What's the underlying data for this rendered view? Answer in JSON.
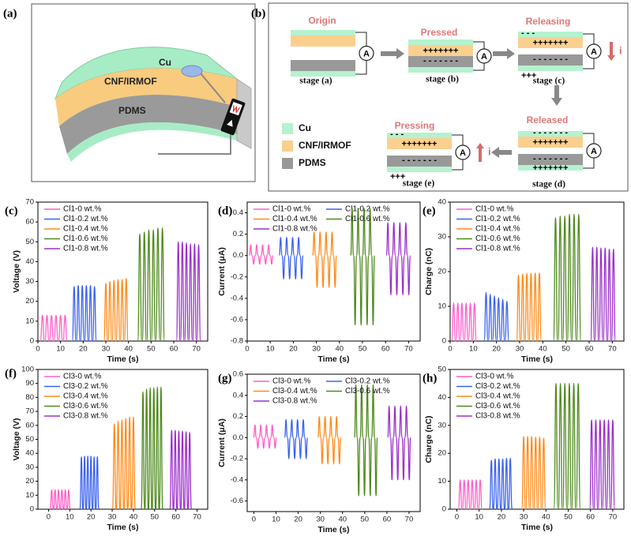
{
  "diagram_a": {
    "label": "(a)",
    "layers": [
      "Cu",
      "CNF/IRMOF",
      "PDMS"
    ]
  },
  "diagram_b": {
    "label": "(b)",
    "stages": [
      {
        "title": "Origin",
        "caption": "stage (a)"
      },
      {
        "title": "Pressed",
        "caption": "stage (b)"
      },
      {
        "title": "Releasing",
        "caption": "stage (c)"
      },
      {
        "title": "Released",
        "caption": "stage (d)"
      },
      {
        "title": "Pressing",
        "caption": "stage (e)"
      }
    ],
    "meter": "A",
    "current": "i",
    "legend": [
      "Cu",
      "CNF/IRMOF",
      "PDMS"
    ],
    "positive": "+++++++",
    "negative": "- - - - - - -",
    "positive_few": "+++",
    "negative_few": "- - -"
  },
  "chart_data": [
    {
      "type": "line",
      "label": "(c)",
      "xlabel": "Time (s)",
      "ylabel": "Voltage (V)",
      "legend": "upper left",
      "xlim": [
        0,
        75
      ],
      "xticks": [
        0,
        10,
        20,
        30,
        40,
        50,
        60,
        70
      ],
      "ylim": [
        0,
        70
      ],
      "yticks": [
        0,
        10,
        20,
        30,
        40,
        50,
        60,
        70
      ],
      "series": [
        {
          "name": "Cl1-0 wt.%",
          "color": "#ff5fc8",
          "x": [
            2,
            4,
            6,
            8,
            10,
            12
          ],
          "values": [
            13,
            13,
            13,
            13,
            13,
            13
          ]
        },
        {
          "name": "Cl1-0.2 wt.%",
          "color": "#3a62f0",
          "x": [
            16,
            17.8,
            19.6,
            21.4,
            23.2,
            25
          ],
          "values": [
            27.5,
            28,
            28,
            28,
            28,
            27.5
          ]
        },
        {
          "name": "Cl1-0.4 wt.%",
          "color": "#ff8a1a",
          "x": [
            30,
            31.8,
            33.6,
            35.4,
            37.2,
            39
          ],
          "values": [
            29,
            30,
            30.5,
            31,
            31,
            31.5
          ]
        },
        {
          "name": "Cl1-0.6 wt.%",
          "color": "#4f8a1e",
          "x": [
            45,
            47,
            49,
            51,
            53,
            55
          ],
          "values": [
            54,
            55,
            56,
            56,
            57,
            57
          ]
        },
        {
          "name": "Cl1-0.8 wt.%",
          "color": "#9b30c8",
          "x": [
            62,
            63.8,
            65.6,
            67.4,
            69.2,
            71
          ],
          "values": [
            50,
            50,
            49.5,
            49,
            49,
            48.5
          ]
        }
      ]
    },
    {
      "type": "line",
      "label": "(d)",
      "xlabel": "Time (s)",
      "ylabel": "Current (μA)",
      "legend": "upper left",
      "xlim": [
        0,
        75
      ],
      "xticks": [
        0,
        10,
        20,
        30,
        40,
        50,
        60,
        70
      ],
      "ylim": [
        -0.8,
        0.5
      ],
      "yticks": [
        -0.8,
        -0.6,
        -0.4,
        -0.2,
        {
          "value": 0,
          "label": "0.0"
        },
        0.2,
        0.4
      ],
      "series": [
        {
          "name": "Cl1-0 wt.%",
          "color": "#ff5fc8",
          "x": [
            1.5,
            2.8,
            4.1,
            5.4,
            6.7,
            8,
            9.3,
            10.6
          ],
          "values": [
            0.1,
            -0.08,
            0.1,
            -0.08,
            0.1,
            -0.08,
            0.1,
            -0.08
          ]
        },
        {
          "name": "Cl1-0.2 wt.%",
          "color": "#3a62f0",
          "x": [
            14.5,
            15.8,
            17.1,
            18.4,
            19.7,
            21,
            22.3,
            23.6
          ],
          "values": [
            0.17,
            -0.22,
            0.17,
            -0.22,
            0.17,
            -0.22,
            0.17,
            -0.22
          ]
        },
        {
          "name": "Cl1-0.4 wt.%",
          "color": "#ff8a1a",
          "x": [
            29,
            30.3,
            31.6,
            32.9,
            34.2,
            35.5,
            36.8,
            38.1
          ],
          "values": [
            0.22,
            -0.3,
            0.22,
            -0.3,
            0.22,
            -0.3,
            0.22,
            -0.3
          ]
        },
        {
          "name": "Cl1-0.6 wt.%",
          "color": "#4f8a1e",
          "x": [
            45.5,
            46.8,
            48.1,
            49.4,
            50.7,
            52,
            53.3,
            54.6
          ],
          "values": [
            0.44,
            -0.65,
            0.44,
            -0.65,
            0.44,
            -0.65,
            0.44,
            -0.65
          ]
        },
        {
          "name": "Cl1-0.8 wt.%",
          "color": "#9b30c8",
          "x": [
            61,
            62.3,
            63.6,
            64.9,
            66.2,
            67.5,
            68.8,
            70.1
          ],
          "values": [
            0.31,
            -0.37,
            0.31,
            -0.37,
            0.31,
            -0.37,
            0.31,
            -0.37
          ]
        }
      ]
    },
    {
      "type": "line",
      "label": "(e)",
      "xlabel": "Time (s)",
      "ylabel": "Charge (nC)",
      "legend": "upper left",
      "xlim": [
        0,
        75
      ],
      "xticks": [
        0,
        10,
        20,
        30,
        40,
        50,
        60,
        70
      ],
      "ylim": [
        0,
        40
      ],
      "yticks": [
        0,
        10,
        20,
        30,
        40
      ],
      "series": [
        {
          "name": "Cl1-0 wt.%",
          "color": "#ff5fc8",
          "x": [
            1.5,
            3.3,
            5.1,
            6.9,
            8.7,
            10.5
          ],
          "values": [
            11,
            11,
            11,
            11,
            11,
            11
          ]
        },
        {
          "name": "Cl1-0.2 wt.%",
          "color": "#3a62f0",
          "x": [
            15.5,
            17.3,
            19.1,
            20.9,
            22.7,
            24.5
          ],
          "values": [
            14,
            13.5,
            13,
            12.5,
            12,
            11.5
          ]
        },
        {
          "name": "Cl1-0.4 wt.%",
          "color": "#ff8a1a",
          "x": [
            29.5,
            31.3,
            33.1,
            34.9,
            36.7,
            38.5
          ],
          "values": [
            19,
            19.3,
            19.5,
            19.5,
            19.6,
            19.6
          ]
        },
        {
          "name": "Cl1-0.6 wt.%",
          "color": "#4f8a1e",
          "x": [
            45.5,
            47.5,
            49.5,
            51.5,
            53.5,
            55.5
          ],
          "values": [
            35.5,
            36,
            36,
            36.5,
            36.5,
            36.5
          ]
        },
        {
          "name": "Cl1-0.8 wt.%",
          "color": "#9b30c8",
          "x": [
            61.5,
            63.3,
            65.1,
            66.9,
            68.7,
            70.5
          ],
          "values": [
            27,
            27,
            26.8,
            26.8,
            26.5,
            26.5
          ]
        }
      ]
    },
    {
      "type": "line",
      "label": "(f)",
      "xlabel": "Time (s)",
      "ylabel": "Voltage (V)",
      "legend": "upper left",
      "xlim": [
        -5,
        75
      ],
      "xticks": [
        0,
        10,
        20,
        30,
        40,
        50,
        60,
        70
      ],
      "ylim": [
        0,
        100
      ],
      "yticks": [
        0,
        10,
        20,
        30,
        40,
        50,
        60,
        70,
        80,
        90,
        100
      ],
      "series": [
        {
          "name": "Cl3-0 wt.%",
          "color": "#ff5fc8",
          "x": [
            1.5,
            3.1,
            4.7,
            6.3,
            7.9,
            9.5
          ],
          "values": [
            14,
            14,
            14,
            14,
            14,
            14
          ]
        },
        {
          "name": "Cl3-0.2 wt.%",
          "color": "#3a62f0",
          "x": [
            15.5,
            17,
            18.5,
            20,
            21.5,
            23
          ],
          "values": [
            37.5,
            38,
            38,
            38,
            37.5,
            37.5
          ]
        },
        {
          "name": "Cl3-0.4 wt.%",
          "color": "#ff8a1a",
          "x": [
            31,
            32.8,
            34.6,
            36.4,
            38.2,
            40
          ],
          "values": [
            61,
            63,
            64,
            65,
            66,
            66
          ]
        },
        {
          "name": "Cl3-0.6 wt.%",
          "color": "#4f8a1e",
          "x": [
            44.5,
            46.2,
            47.9,
            49.6,
            51.3,
            53
          ],
          "values": [
            84,
            86,
            87,
            87,
            87.5,
            87.5
          ]
        },
        {
          "name": "Cl3-0.8 wt.%",
          "color": "#9b30c8",
          "x": [
            58,
            59.7,
            61.4,
            63.1,
            64.8,
            66.5
          ],
          "values": [
            56.5,
            56.5,
            56,
            56,
            55.5,
            55
          ]
        }
      ]
    },
    {
      "type": "line",
      "label": "(g)",
      "xlabel": "Time (s)",
      "ylabel": "Current (μA)",
      "legend": "upper left",
      "xlim": [
        -3,
        75
      ],
      "xticks": [
        0,
        10,
        20,
        30,
        40,
        50,
        60,
        70
      ],
      "ylim": [
        -0.7,
        0.6
      ],
      "yticks": [
        -0.6,
        -0.4,
        -0.2,
        {
          "value": 0,
          "label": "0.0"
        },
        0.2,
        0.4,
        0.6
      ],
      "series": [
        {
          "name": "Cl3-0 wt.%",
          "color": "#ff5fc8",
          "x": [
            0.5,
            1.8,
            3.1,
            4.4,
            5.7,
            7,
            8.3,
            9.6
          ],
          "values": [
            0.12,
            -0.1,
            0.12,
            -0.1,
            0.12,
            -0.1,
            0.12,
            -0.1
          ]
        },
        {
          "name": "Cl3-0.2 wt.%",
          "color": "#3a62f0",
          "x": [
            14.5,
            15.8,
            17.1,
            18.4,
            19.7,
            21,
            22.3,
            23.6
          ],
          "values": [
            0.17,
            -0.2,
            0.17,
            -0.2,
            0.17,
            -0.2,
            0.17,
            -0.2
          ]
        },
        {
          "name": "Cl3-0.4 wt.%",
          "color": "#ff8a1a",
          "x": [
            29.5,
            30.8,
            32.1,
            33.4,
            34.7,
            36,
            37.3,
            38.6
          ],
          "values": [
            0.2,
            -0.25,
            0.2,
            -0.25,
            0.2,
            -0.25,
            0.2,
            -0.25
          ]
        },
        {
          "name": "Cl3-0.6 wt.%",
          "color": "#4f8a1e",
          "x": [
            46,
            47.3,
            48.6,
            49.9,
            51.2,
            52.5,
            53.8,
            55.1
          ],
          "values": [
            0.5,
            -0.55,
            0.5,
            -0.55,
            0.5,
            -0.55,
            0.5,
            -0.55
          ]
        },
        {
          "name": "Cl3-0.8 wt.%",
          "color": "#9b30c8",
          "x": [
            61,
            62.3,
            63.6,
            64.9,
            66.2,
            67.5,
            68.8,
            70.1
          ],
          "values": [
            0.3,
            -0.4,
            0.3,
            -0.4,
            0.3,
            -0.4,
            0.3,
            -0.4
          ]
        }
      ]
    },
    {
      "type": "line",
      "label": "(h)",
      "xlabel": "Time (s)",
      "ylabel": "Charge (nC)",
      "legend": "upper left",
      "xlim": [
        -3,
        75
      ],
      "xticks": [
        0,
        10,
        20,
        30,
        40,
        50,
        60,
        70
      ],
      "ylim": [
        0,
        50
      ],
      "yticks": [
        0,
        10,
        20,
        30,
        40,
        50
      ],
      "series": [
        {
          "name": "Cl3-0 wt.%",
          "color": "#ff5fc8",
          "x": [
            1.5,
            3.3,
            5.1,
            6.9,
            8.7,
            10.5
          ],
          "values": [
            10.5,
            10.5,
            10.5,
            10.5,
            10.5,
            10.5
          ]
        },
        {
          "name": "Cl3-0.2 wt.%",
          "color": "#3a62f0",
          "x": [
            15.5,
            17.2,
            18.9,
            20.6,
            22.3,
            24
          ],
          "values": [
            17.5,
            18,
            18,
            18,
            18.2,
            18.2
          ]
        },
        {
          "name": "Cl3-0.4 wt.%",
          "color": "#ff8a1a",
          "x": [
            30,
            31.8,
            33.6,
            35.4,
            37.2,
            39
          ],
          "values": [
            26,
            26,
            26,
            25.8,
            25.8,
            25.5
          ]
        },
        {
          "name": "Cl3-0.6 wt.%",
          "color": "#4f8a1e",
          "x": [
            44.5,
            46.5,
            48.5,
            50.5,
            52.5,
            54.5
          ],
          "values": [
            45,
            45,
            45,
            45,
            45,
            45
          ]
        },
        {
          "name": "Cl3-0.8 wt.%",
          "color": "#9b30c8",
          "x": [
            60.5,
            62.4,
            64.3,
            66.2,
            68.1,
            70
          ],
          "values": [
            32,
            32,
            32,
            32,
            32,
            32
          ]
        }
      ]
    }
  ]
}
